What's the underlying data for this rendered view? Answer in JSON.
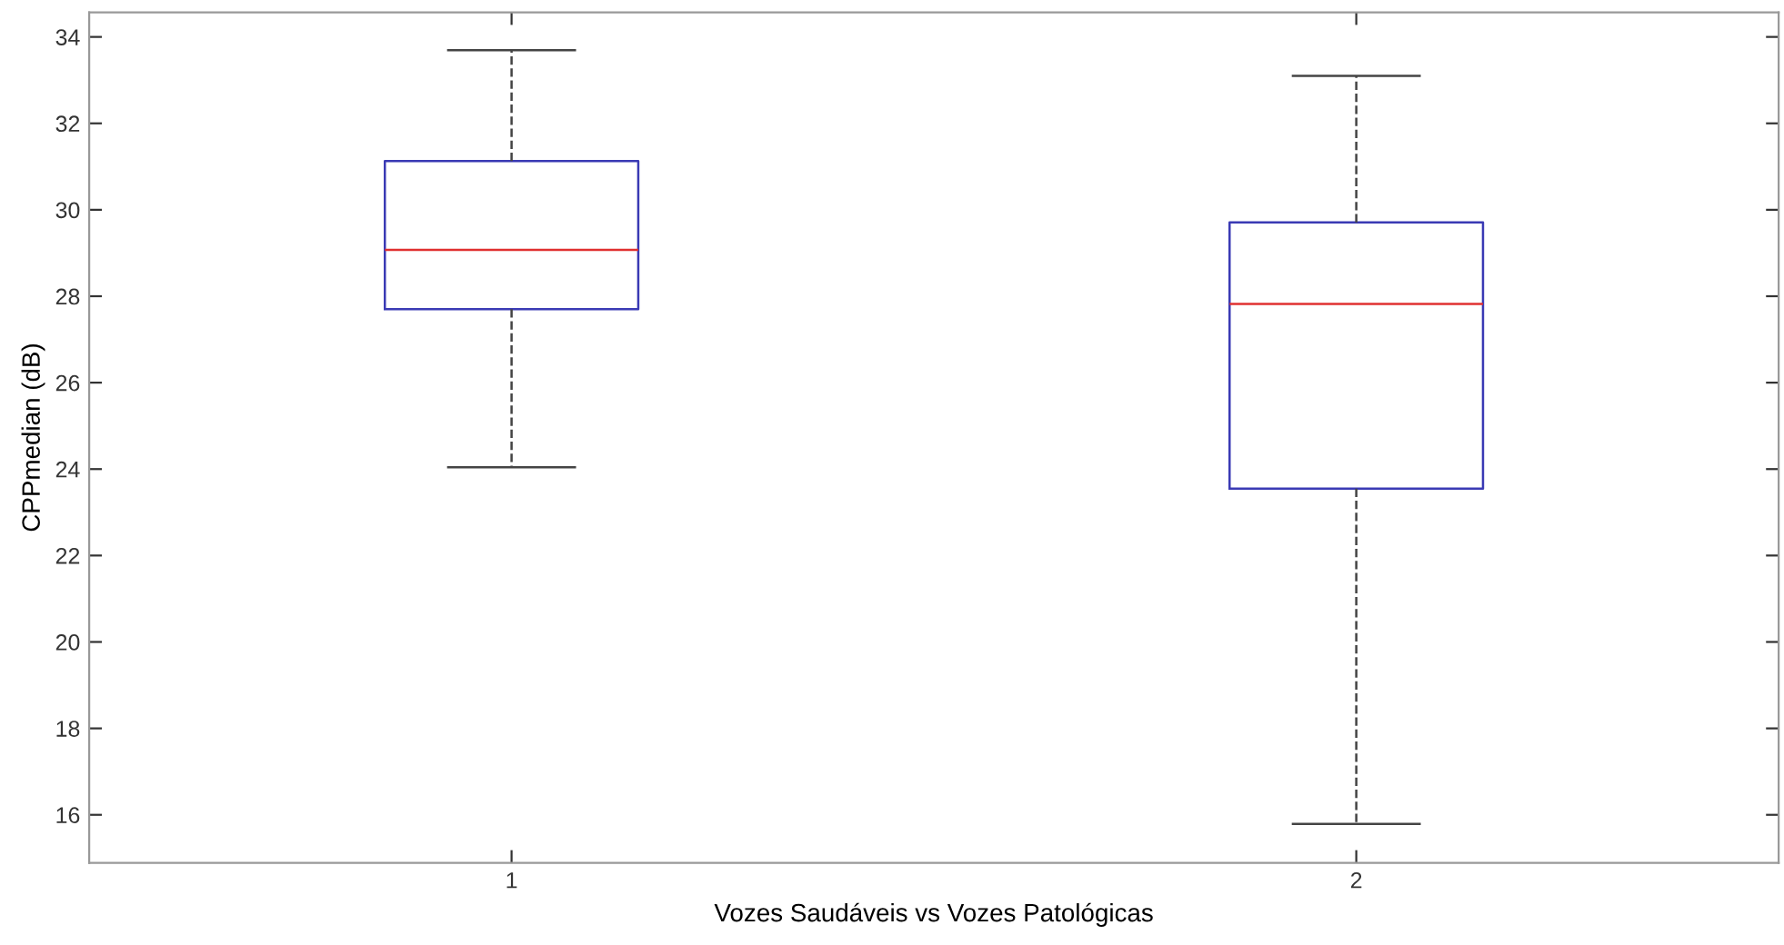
{
  "chart_data": {
    "type": "box",
    "xlabel": "Vozes Saudáveis vs Vozes Patológicas",
    "ylabel": "CPPmedian (dB)",
    "categories": [
      "1",
      "2"
    ],
    "boxes": [
      {
        "low": 24.04,
        "q1": 27.7,
        "median": 29.07,
        "q3": 31.13,
        "high": 33.69
      },
      {
        "low": 15.79,
        "q1": 23.55,
        "median": 27.82,
        "q3": 29.71,
        "high": 33.1
      }
    ],
    "color": "#3a3ab4",
    "ylim": [
      14.89,
      34.57
    ],
    "yticks": [
      16,
      18,
      20,
      22,
      24,
      26,
      28,
      30,
      32,
      34
    ],
    "grid": false
  }
}
